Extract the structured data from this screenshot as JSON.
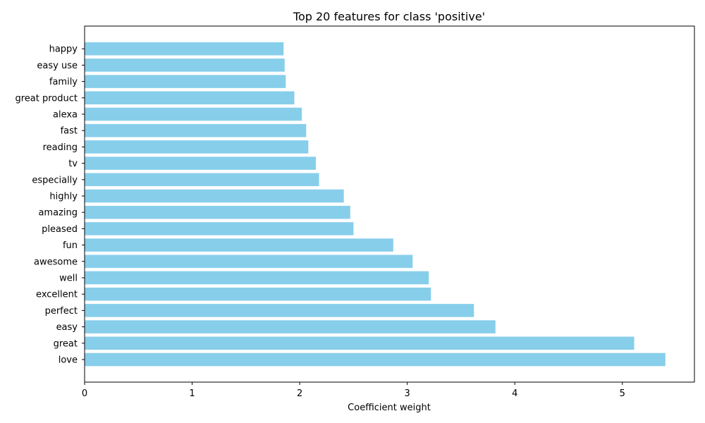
{
  "chart_data": {
    "type": "bar",
    "orientation": "horizontal",
    "title": "Top 20 features for class 'positive'",
    "xlabel": "Coefficient weight",
    "ylabel": "",
    "bar_color": "#87ceeb",
    "xlim": [
      0,
      5.67
    ],
    "xticks": [
      0,
      1,
      2,
      3,
      4,
      5
    ],
    "xtick_labels": [
      "0",
      "1",
      "2",
      "3",
      "4",
      "5"
    ],
    "grid": false,
    "categories": [
      "love",
      "great",
      "easy",
      "perfect",
      "excellent",
      "well",
      "awesome",
      "fun",
      "pleased",
      "amazing",
      "highly",
      "especially",
      "tv",
      "reading",
      "fast",
      "alexa",
      "great product",
      "family",
      "easy use",
      "happy"
    ],
    "values": [
      5.4,
      5.11,
      3.82,
      3.62,
      3.22,
      3.2,
      3.05,
      2.87,
      2.5,
      2.47,
      2.41,
      2.18,
      2.15,
      2.08,
      2.06,
      2.02,
      1.95,
      1.87,
      1.86,
      1.85
    ]
  }
}
